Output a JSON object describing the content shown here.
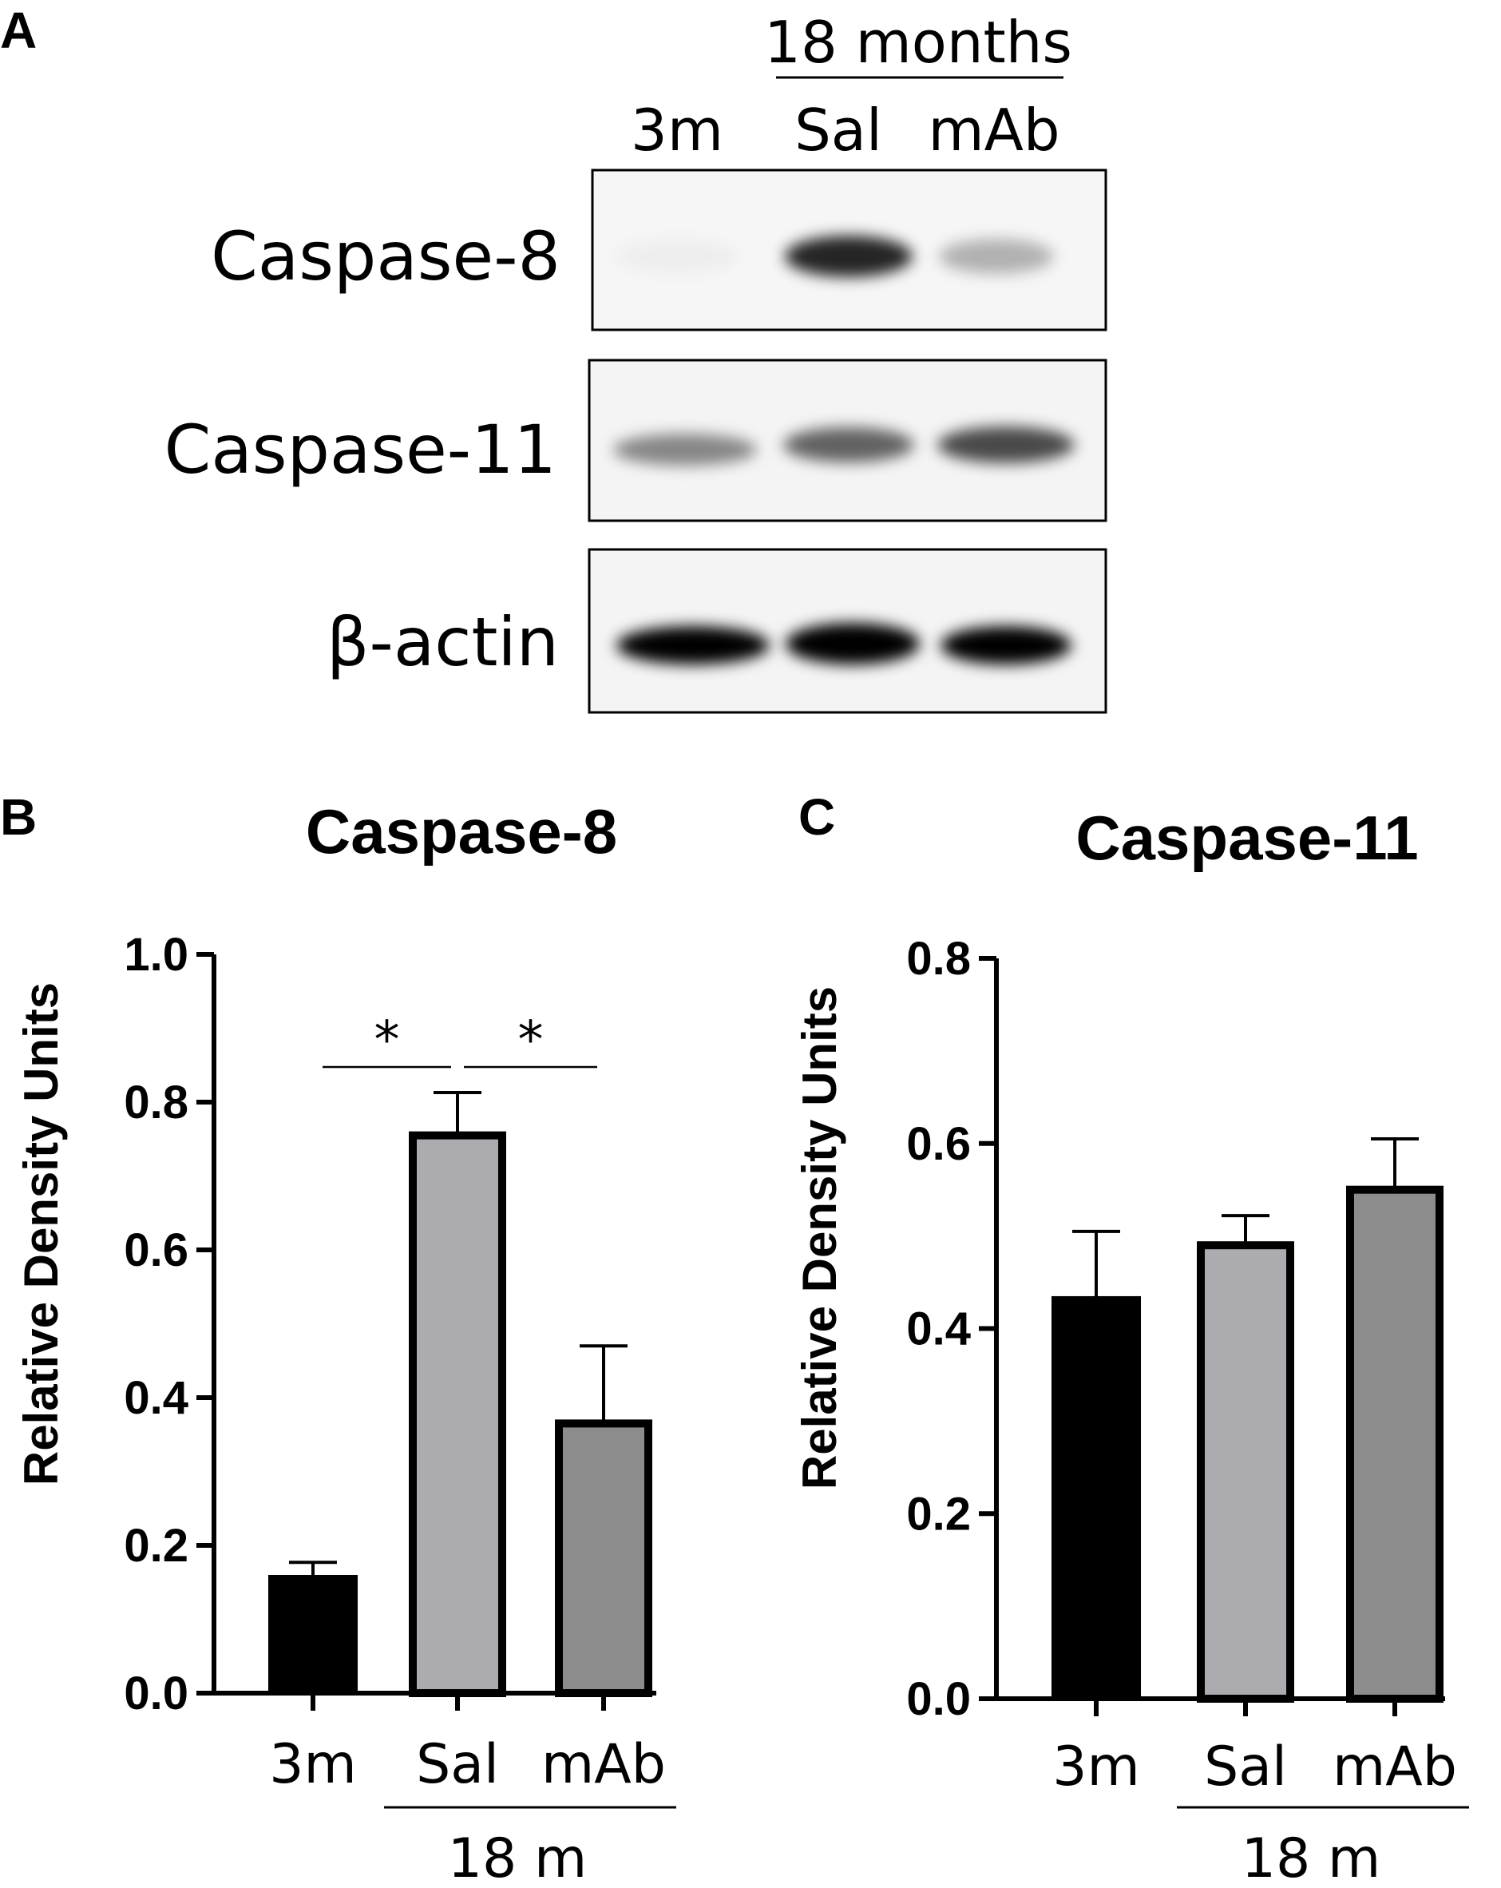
{
  "panel_a": {
    "letter": "A",
    "group_label": "18 months",
    "lanes": [
      "3m",
      "Sal",
      "mAb"
    ],
    "blots": [
      {
        "label": "Caspase-8",
        "intensities": [
          0.03,
          0.85,
          0.28
        ]
      },
      {
        "label": "Caspase-11",
        "intensities": [
          0.45,
          0.6,
          0.7
        ]
      },
      {
        "label": "β-actin",
        "intensities": [
          1.0,
          1.0,
          1.0
        ]
      }
    ]
  },
  "chart_data": [
    {
      "panel": "B",
      "type": "bar",
      "title": "Caspase-8",
      "ylabel": "Relative Density Units",
      "xlabel": "",
      "group_label": "18 m",
      "categories": [
        "3m",
        "Sal",
        "mAb"
      ],
      "values": [
        0.16,
        0.755,
        0.365
      ],
      "errors": [
        0.017,
        0.058,
        0.105
      ],
      "colors": [
        "#000000",
        "#acacb0",
        "#8c8c8c"
      ],
      "ylim": [
        0.0,
        1.0
      ],
      "yticks": [
        "0.0",
        "0.2",
        "0.4",
        "0.6",
        "0.8",
        "1.0"
      ],
      "significance": [
        {
          "from": 0,
          "to": 1,
          "label": "*"
        },
        {
          "from": 1,
          "to": 2,
          "label": "*"
        }
      ]
    },
    {
      "panel": "C",
      "type": "bar",
      "title": "Caspase-11",
      "ylabel": "Relative Density Units",
      "xlabel": "",
      "group_label": "18 m",
      "categories": [
        "3m",
        "Sal",
        "mAb"
      ],
      "values": [
        0.435,
        0.49,
        0.55
      ],
      "errors": [
        0.07,
        0.032,
        0.055
      ],
      "colors": [
        "#000000",
        "#acacb0",
        "#8c8c8c"
      ],
      "ylim": [
        0.0,
        0.8
      ],
      "yticks": [
        "0.0",
        "0.2",
        "0.4",
        "0.6",
        "0.8"
      ],
      "significance": []
    }
  ]
}
